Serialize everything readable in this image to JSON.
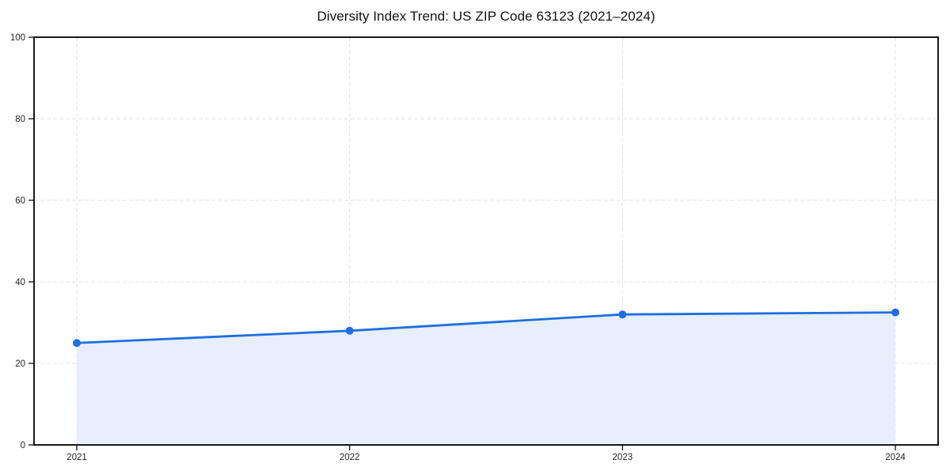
{
  "chart_data": {
    "type": "line",
    "title": "Diversity Index Trend: US ZIP Code 63123 (2021–2024)",
    "categories": [
      "2021",
      "2022",
      "2023",
      "2024"
    ],
    "series": [
      {
        "name": "Diversity Index",
        "values": [
          25,
          28,
          32,
          32.5
        ]
      }
    ],
    "xlabel": "",
    "ylabel": "",
    "ylim": [
      0,
      100
    ],
    "yticks": [
      0,
      20,
      40,
      60,
      80,
      100
    ],
    "grid": true,
    "grid_style": "dashed",
    "legend": false,
    "area_fill": true,
    "marker": "circle",
    "colors": {
      "line": "#1d6fe0",
      "marker": "#1d6fe0",
      "fill": "#e7eefc",
      "grid": "#e3e3e3",
      "spine": "#000000",
      "tick_label": "#262626",
      "title": "#111111",
      "background": "#ffffff"
    }
  }
}
